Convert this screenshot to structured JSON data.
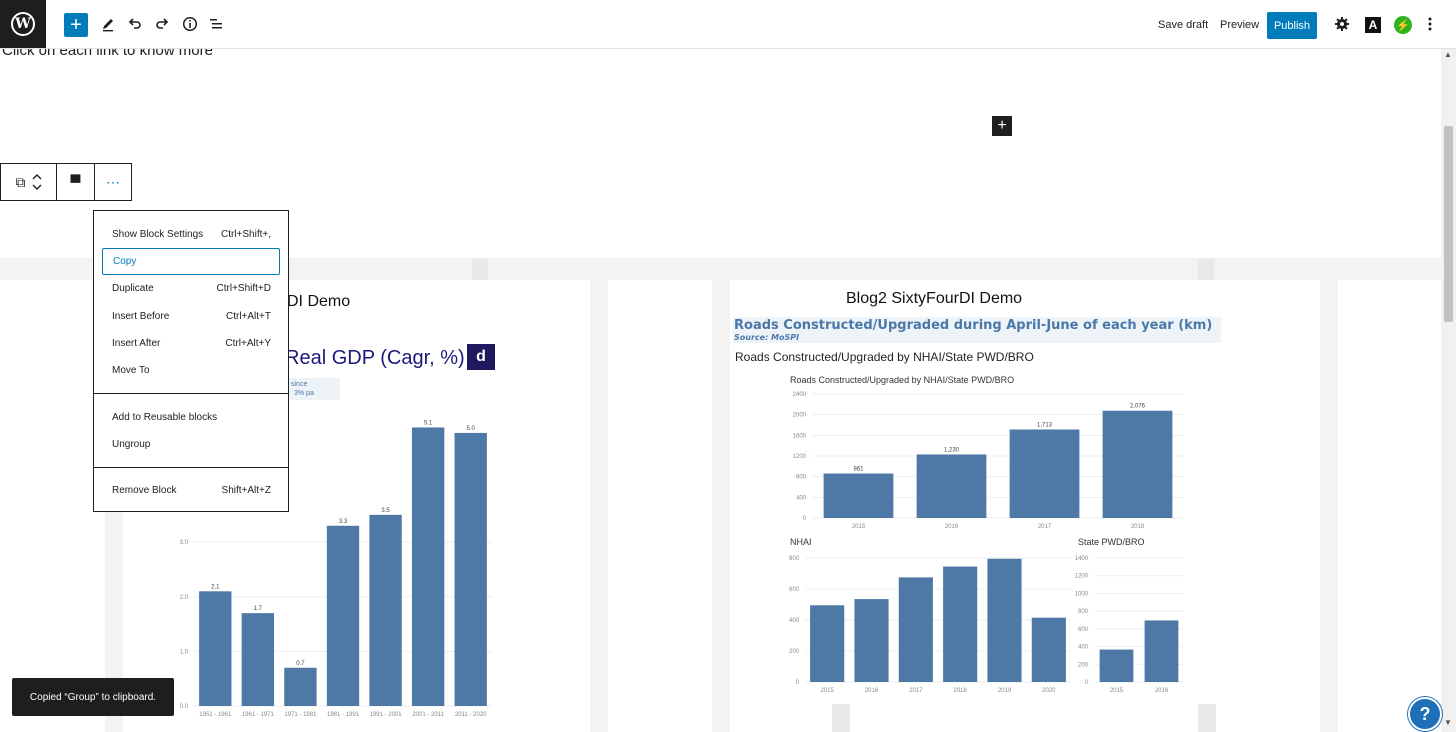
{
  "toolbar": {
    "logo_glyph": "W",
    "add_glyph": "+",
    "save_draft": "Save draft",
    "preview": "Preview",
    "publish": "Publish",
    "a_glyph": "A",
    "jetpack_glyph": "⚡",
    "icons": [
      "add-icon",
      "pencil-icon",
      "undo-icon",
      "redo-icon",
      "info-icon",
      "list-view-icon",
      "gear-icon",
      "a-icon",
      "jetpack-icon",
      "more-vertical-icon"
    ],
    "accent": "#007cba"
  },
  "editor": {
    "intro_text": "Click on each link to know more",
    "inserter_glyph": "+"
  },
  "block_toolbar": {
    "group_glyph": "⧉",
    "align_glyph": "▀",
    "more_glyph": "⋯"
  },
  "menu": {
    "items": [
      {
        "label": "Show Block Settings",
        "shortcut": "Ctrl+Shift+,"
      },
      {
        "label": "Copy",
        "shortcut": ""
      },
      {
        "label": "Duplicate",
        "shortcut": "Ctrl+Shift+D"
      },
      {
        "label": "Insert Before",
        "shortcut": "Ctrl+Alt+T"
      },
      {
        "label": "Insert After",
        "shortcut": "Ctrl+Alt+Y"
      },
      {
        "label": "Move To",
        "shortcut": ""
      },
      {
        "label": "Add to Reusable blocks",
        "shortcut": ""
      },
      {
        "label": "Ungroup",
        "shortcut": ""
      },
      {
        "label": "Remove Block",
        "shortcut": "Shift+Alt+Z"
      }
    ]
  },
  "embed_left": {
    "title": "DI Demo",
    "chart_title": "Real GDP (Cagr, %)",
    "logo_glyph": "d",
    "since_line1": "since",
    "since_line2": "3% pa"
  },
  "embed_right": {
    "title": "Blog2 SixtyFourDI Demo",
    "roads_title": "Roads Constructed/Upgraded during April-June of each year (km)",
    "roads_source": "Source: MoSPI",
    "roads_sub": "Roads Constructed/Upgraded by NHAI/State PWD/BRO"
  },
  "chart_data": [
    {
      "type": "bar",
      "categories": [
        "1951 - 1961",
        "1961 - 1971",
        "1971 - 1981",
        "1981 - 1991",
        "1991 - 2001",
        "2001 - 2011",
        "2011 - 2020"
      ],
      "values": [
        2.1,
        1.7,
        0.7,
        3.3,
        3.5,
        5.1,
        5.0
      ],
      "value_labels": [
        "2.1",
        "1.7",
        "0.7",
        "3.3",
        "3.5",
        "5.1",
        "5.0"
      ],
      "yticks": [
        "0.0",
        "1.0",
        "2.0",
        "3.0"
      ],
      "ylim": [
        0,
        5.2
      ],
      "color": "#4e79a7"
    },
    {
      "type": "bar",
      "title": "Roads Constructed/Upgraded by NHAI/State PWD/BRO",
      "categories": [
        "2015",
        "2016",
        "2017",
        "2018"
      ],
      "values": [
        861,
        1230,
        1713,
        2076
      ],
      "value_labels": [
        "861",
        "1,230",
        "1,713",
        "2,076"
      ],
      "yticks": [
        "0",
        "400",
        "800",
        "1200",
        "1600",
        "2000",
        "2400"
      ],
      "ylim": [
        0,
        2400
      ],
      "color": "#4e79a7"
    },
    {
      "type": "bar",
      "title": "NHAI",
      "categories": [
        "2015",
        "2016",
        "2017",
        "2018",
        "2019",
        "2020"
      ],
      "values": [
        495,
        535,
        675,
        745,
        795,
        415
      ],
      "yticks": [
        "0",
        "200",
        "400",
        "600",
        "800"
      ],
      "ylim": [
        0,
        800
      ],
      "color": "#4e79a7"
    },
    {
      "type": "bar",
      "title": "State PWD/BRO",
      "categories": [
        "2015",
        "2016"
      ],
      "values": [
        366,
        695
      ],
      "yticks": [
        "0",
        "200",
        "400",
        "600",
        "800",
        "1000",
        "1200",
        "1400"
      ],
      "ylim": [
        0,
        1400
      ],
      "color": "#4e79a7"
    }
  ],
  "snackbar": {
    "text": "Copied “Group” to clipboard."
  },
  "help": {
    "glyph": "?"
  }
}
